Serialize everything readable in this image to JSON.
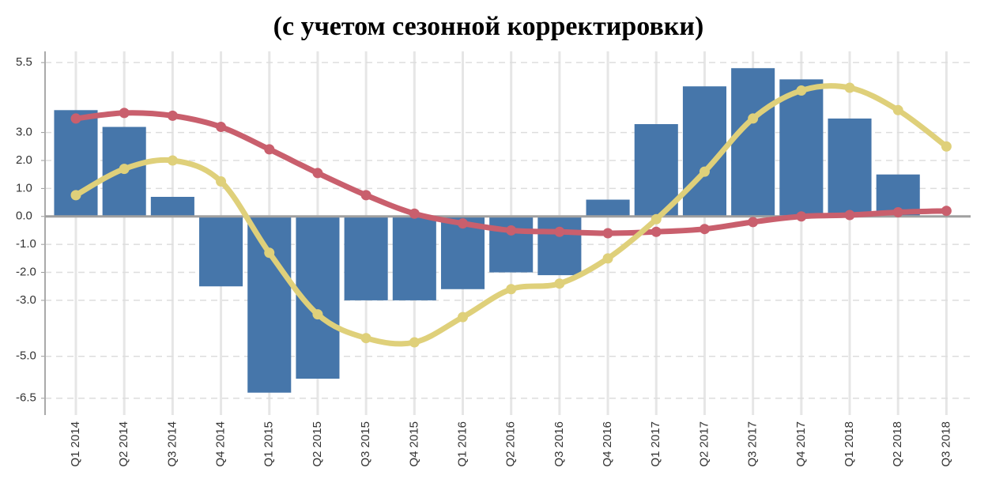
{
  "chart_data": {
    "type": "bar_line",
    "title": "(с учетом сезонной корректировки)",
    "categories": [
      "Q1 2014",
      "Q2 2014",
      "Q3 2014",
      "Q4 2014",
      "Q1 2015",
      "Q2 2015",
      "Q3 2015",
      "Q4 2015",
      "Q1 2016",
      "Q2 2016",
      "Q3 2016",
      "Q4 2016",
      "Q1 2017",
      "Q2 2017",
      "Q3 2017",
      "Q4 2017",
      "Q1 2018",
      "Q2 2018",
      "Q3 2018"
    ],
    "series": [
      {
        "type": "bar",
        "color": "#4676aa",
        "values": [
          3.8,
          3.2,
          0.7,
          -2.5,
          -6.3,
          -5.8,
          -3.0,
          -3.0,
          -2.6,
          -2.0,
          -2.1,
          0.6,
          3.3,
          4.65,
          5.3,
          4.9,
          3.5,
          1.5,
          null
        ]
      },
      {
        "type": "line",
        "color": "#c95f6d",
        "values": [
          3.5,
          3.7,
          3.6,
          3.2,
          2.4,
          1.55,
          0.76,
          0.1,
          -0.25,
          -0.5,
          -0.55,
          -0.6,
          -0.55,
          -0.45,
          -0.2,
          0.0,
          0.05,
          0.15,
          0.2
        ]
      },
      {
        "type": "line",
        "color": "#dfd07a",
        "values": [
          0.76,
          1.7,
          2.0,
          1.25,
          -1.3,
          -3.5,
          -4.35,
          -4.5,
          -3.6,
          -2.6,
          -2.4,
          -1.5,
          -0.1,
          1.6,
          3.5,
          4.5,
          4.6,
          3.8,
          2.5
        ]
      }
    ],
    "ylim": [
      -7.1,
      5.9
    ],
    "yticks": [
      5.5,
      {
        "value": 3,
        "label": "3.0"
      },
      {
        "value": 2,
        "label": "2.0"
      },
      {
        "value": 1,
        "label": "1.0"
      },
      {
        "value": 0,
        "label": "0.0"
      },
      {
        "value": -1,
        "label": "-1.0"
      },
      {
        "value": -2,
        "label": "-2.0"
      },
      {
        "value": -3,
        "label": "-3.0"
      },
      {
        "value": -5,
        "label": "-5.0"
      },
      -6.5
    ],
    "grid": true
  }
}
